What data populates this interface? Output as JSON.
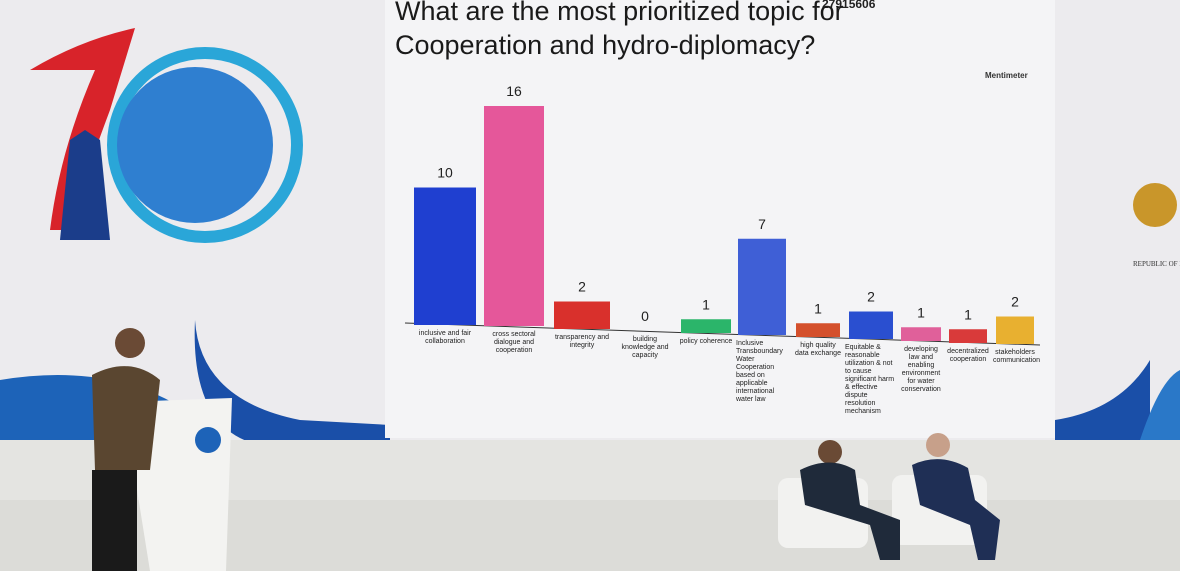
{
  "chart_data": {
    "type": "bar",
    "title": "What are the most prioritized topic for Cooperation and hydro-diplomacy?",
    "categories": [
      "inclusive and fair collaboration",
      "cross sectoral dialogue and cooperation",
      "transparency and integrity",
      "building knowledge and capacity",
      "policy coherence",
      "Inclusive Transboundary Water Cooperation based on applicable international water law",
      "high quality data exchange",
      "Equitable & reasonable utilization & not to cause significant harm & effective dispute resolution mechanism",
      "developing law and enabling environment for water conservation",
      "decentralized cooperation",
      "stakeholders communication"
    ],
    "values": [
      10,
      16,
      2,
      0,
      1,
      7,
      1,
      2,
      1,
      1,
      2
    ],
    "colors": [
      "#1f3fd0",
      "#e5579a",
      "#d9302c",
      "#cccccc",
      "#2bb56a",
      "#3f5fd6",
      "#d4502c",
      "#2a4fd0",
      "#e0609a",
      "#d93a3a",
      "#e8b030"
    ]
  },
  "brand": "Mentimeter",
  "phone": "27915606",
  "emblem_caption": "REPUBLIC OF INDO"
}
